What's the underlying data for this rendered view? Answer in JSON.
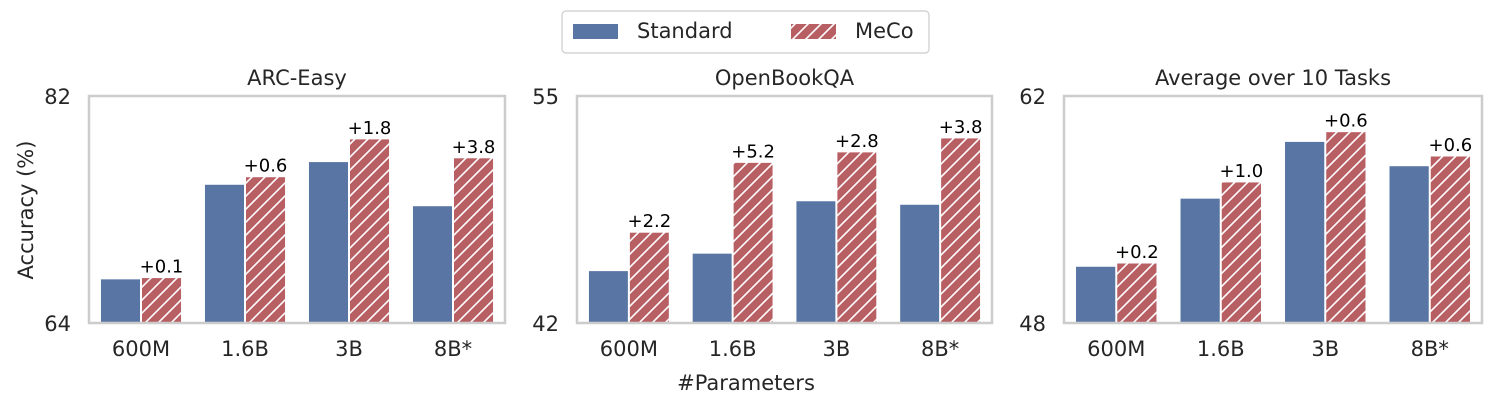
{
  "legend": {
    "items": [
      {
        "label": "Standard",
        "color": "#5875a4",
        "hatch": false
      },
      {
        "label": "MeCo",
        "color": "#b85f64",
        "hatch": true
      }
    ]
  },
  "xlabel": "#Parameters",
  "ylabel": "Accuracy (%)",
  "colors": {
    "standard": "#5875a4",
    "meco": "#b85f64",
    "frame": "#cccccc",
    "text": "#262626"
  },
  "chart_data": [
    {
      "type": "bar",
      "title": "ARC-Easy",
      "categories": [
        "600M",
        "1.6B",
        "3B",
        "8B*"
      ],
      "series": [
        {
          "name": "Standard",
          "values": [
            67.5,
            75.0,
            76.8,
            73.3
          ]
        },
        {
          "name": "MeCo",
          "values": [
            67.6,
            75.6,
            78.6,
            77.1
          ]
        }
      ],
      "annotations": [
        "+0.1",
        "+0.6",
        "+1.8",
        "+3.8"
      ],
      "ylim": [
        64,
        82
      ],
      "yticks": [
        64,
        82
      ],
      "xlabel": "",
      "ylabel": "Accuracy (%)"
    },
    {
      "type": "bar",
      "title": "OpenBookQA",
      "categories": [
        "600M",
        "1.6B",
        "3B",
        "8B*"
      ],
      "series": [
        {
          "name": "Standard",
          "values": [
            45.0,
            46.0,
            49.0,
            48.8
          ]
        },
        {
          "name": "MeCo",
          "values": [
            47.2,
            51.2,
            51.8,
            52.6
          ]
        }
      ],
      "annotations": [
        "+2.2",
        "+5.2",
        "+2.8",
        "+3.8"
      ],
      "ylim": [
        42,
        55
      ],
      "yticks": [
        42,
        55
      ],
      "xlabel": "#Parameters",
      "ylabel": ""
    },
    {
      "type": "bar",
      "title": "Average over 10 Tasks",
      "categories": [
        "600M",
        "1.6B",
        "3B",
        "8B*"
      ],
      "series": [
        {
          "name": "Standard",
          "values": [
            51.5,
            55.7,
            59.2,
            57.7
          ]
        },
        {
          "name": "MeCo",
          "values": [
            51.7,
            56.7,
            59.8,
            58.3
          ]
        }
      ],
      "annotations": [
        "+0.2",
        "+1.0",
        "+0.6",
        "+0.6"
      ],
      "ylim": [
        48,
        62
      ],
      "yticks": [
        48,
        62
      ],
      "xlabel": "",
      "ylabel": ""
    }
  ]
}
